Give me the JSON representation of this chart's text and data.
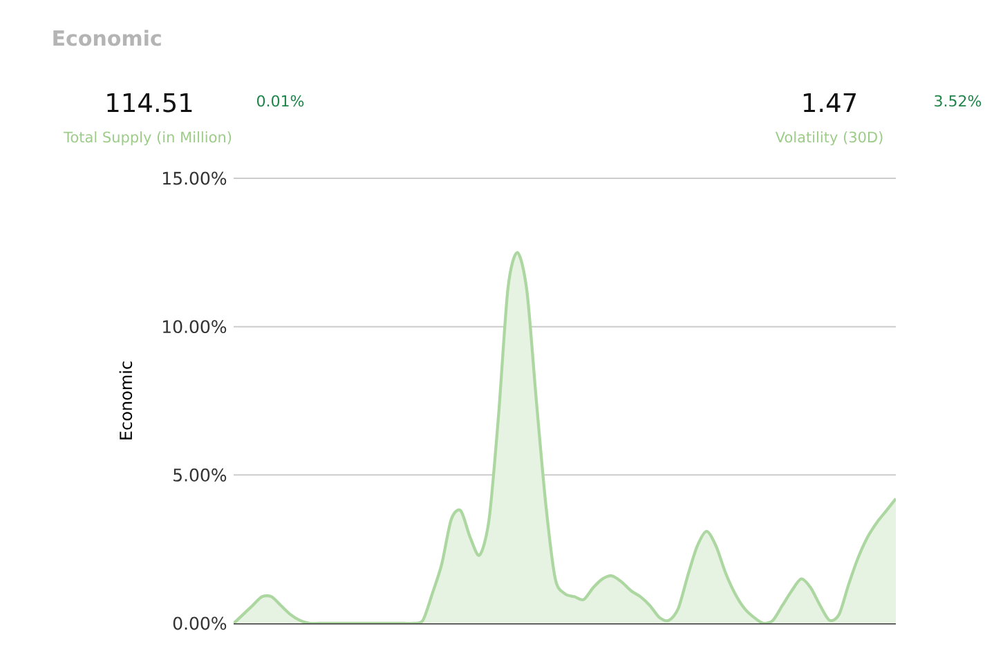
{
  "chart_data": [
    {
      "type": "other",
      "title": "Economic",
      "annotations": [
        "114.51",
        "0.01%",
        "Total Supply (in Million)",
        "1.47",
        "3.52%",
        "Volatility (30D)"
      ]
    },
    {
      "type": "area",
      "ylabel": "Economic",
      "color": "#acd7a0",
      "ylim": [
        0,
        15
      ],
      "yticks": [
        {
          "value": 0,
          "label": "0.00%"
        },
        {
          "value": 5,
          "label": "5.00%"
        },
        {
          "value": 10,
          "label": "10.00%"
        },
        {
          "value": 15,
          "label": "15.00%"
        }
      ],
      "grid": "y",
      "categories": [
        null,
        null,
        null,
        null,
        null,
        null,
        null,
        null,
        null,
        null,
        null,
        null,
        null,
        null,
        null,
        null,
        null,
        null,
        null,
        null,
        null,
        null,
        null,
        null,
        null,
        null,
        null,
        null,
        null,
        null,
        null,
        null,
        null,
        null,
        null,
        null,
        null,
        null,
        null,
        null,
        null,
        null,
        null,
        null,
        null,
        null,
        null,
        null,
        null,
        null,
        null,
        null,
        null,
        null,
        null,
        null,
        null,
        null,
        null,
        null,
        null,
        null,
        null,
        null,
        null,
        null,
        null,
        null,
        null,
        null,
        null
      ],
      "values": [
        0,
        0.3,
        0.6,
        0.9,
        0.9,
        0.6,
        0.3,
        0.1,
        0,
        0,
        0,
        0,
        0,
        0,
        0,
        0,
        0,
        0,
        0,
        0,
        0.1,
        1.0,
        2.0,
        3.5,
        3.8,
        2.9,
        2.3,
        3.5,
        7.0,
        11.3,
        12.5,
        11.2,
        7.5,
        4.0,
        1.5,
        1.0,
        0.9,
        0.8,
        1.2,
        1.5,
        1.6,
        1.4,
        1.1,
        0.9,
        0.6,
        0.2,
        0.1,
        0.5,
        1.6,
        2.6,
        3.1,
        2.6,
        1.7,
        1.0,
        0.5,
        0.2,
        0,
        0.1,
        0.6,
        1.1,
        1.5,
        1.2,
        0.6,
        0.1,
        0.3,
        1.3,
        2.2,
        2.9,
        3.4,
        3.8,
        4.2
      ]
    }
  ]
}
